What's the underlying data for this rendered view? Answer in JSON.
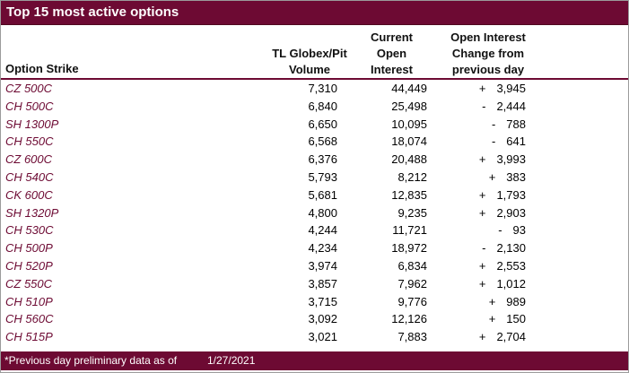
{
  "title": "Top 15 most active options",
  "columns": {
    "option_strike": "Option Strike",
    "volume_lines": [
      "TL Globex/Pit",
      "Volume"
    ],
    "oi_lines": [
      "Current",
      "Open",
      "Interest"
    ],
    "change_lines": [
      "Open Interest",
      "Change from",
      "previous day"
    ]
  },
  "rows": [
    {
      "strike": "CZ 500C",
      "volume": "7,310",
      "open_interest": "44,449",
      "change_sign": "+",
      "change_value": "3,945"
    },
    {
      "strike": "CH 500C",
      "volume": "6,840",
      "open_interest": "25,498",
      "change_sign": "-",
      "change_value": "2,444"
    },
    {
      "strike": "SH 1300P",
      "volume": "6,650",
      "open_interest": "10,095",
      "change_sign": "-",
      "change_value": "788"
    },
    {
      "strike": "CH 550C",
      "volume": "6,568",
      "open_interest": "18,074",
      "change_sign": "-",
      "change_value": "641"
    },
    {
      "strike": "CZ 600C",
      "volume": "6,376",
      "open_interest": "20,488",
      "change_sign": "+",
      "change_value": "3,993"
    },
    {
      "strike": "CH 540C",
      "volume": "5,793",
      "open_interest": "8,212",
      "change_sign": "+",
      "change_value": "383"
    },
    {
      "strike": "CK 600C",
      "volume": "5,681",
      "open_interest": "12,835",
      "change_sign": "+",
      "change_value": "1,793"
    },
    {
      "strike": "SH 1320P",
      "volume": "4,800",
      "open_interest": "9,235",
      "change_sign": "+",
      "change_value": "2,903"
    },
    {
      "strike": "CH 530C",
      "volume": "4,244",
      "open_interest": "11,721",
      "change_sign": "-",
      "change_value": "93"
    },
    {
      "strike": "CH 500P",
      "volume": "4,234",
      "open_interest": "18,972",
      "change_sign": "-",
      "change_value": "2,130"
    },
    {
      "strike": "CH 520P",
      "volume": "3,974",
      "open_interest": "6,834",
      "change_sign": "+",
      "change_value": "2,553"
    },
    {
      "strike": "CZ 550C",
      "volume": "3,857",
      "open_interest": "7,962",
      "change_sign": "+",
      "change_value": "1,012"
    },
    {
      "strike": "CH 510P",
      "volume": "3,715",
      "open_interest": "9,776",
      "change_sign": "+",
      "change_value": "989"
    },
    {
      "strike": "CH 560C",
      "volume": "3,092",
      "open_interest": "12,126",
      "change_sign": "+",
      "change_value": "150"
    },
    {
      "strike": "CH 515P",
      "volume": "3,021",
      "open_interest": "7,883",
      "change_sign": "+",
      "change_value": "2,704"
    }
  ],
  "footer": {
    "note": "*Previous day preliminary data as of",
    "date": "1/27/2021"
  },
  "colors": {
    "maroon": "#6D0A33",
    "text": "#111111"
  }
}
